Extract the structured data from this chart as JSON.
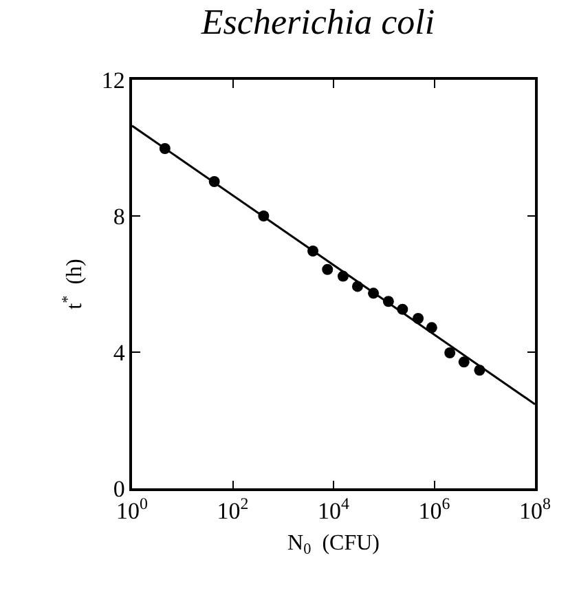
{
  "chart_data": {
    "type": "scatter",
    "title": "Escherichia coli",
    "xlabel": "N$_{0}$  (CFU)",
    "ylabel": "t$^{*}$  (h)",
    "log": "x",
    "xlim": [
      1,
      100000000
    ],
    "ylim": [
      0,
      12
    ],
    "xticks": [
      {
        "value": 1,
        "label": "10$^{0}$"
      },
      {
        "value": 100,
        "label": "10$^{2}$"
      },
      {
        "value": 10000,
        "label": "10$^{4}$"
      },
      {
        "value": 1000000,
        "label": "10$^{6}$"
      },
      {
        "value": 100000000,
        "label": "10$^{8}$"
      }
    ],
    "yticks": [
      0,
      4,
      8,
      12
    ],
    "series": [
      {
        "marker": "circle",
        "color": "#000000",
        "x": [
          4.5,
          43,
          410,
          3900,
          7600,
          15500,
          30000,
          62000,
          123000,
          234000,
          479000,
          891000,
          2040000,
          3890000,
          7940000
        ],
        "values": [
          9.98,
          9.01,
          8.0,
          6.97,
          6.43,
          6.23,
          5.93,
          5.73,
          5.49,
          5.26,
          4.99,
          4.72,
          3.98,
          3.71,
          3.47
        ]
      },
      {
        "type": "line",
        "marker": "none",
        "color": "#000000",
        "line_style": "solid",
        "x": [
          1,
          100000000
        ],
        "values": [
          10.65,
          2.47
        ]
      }
    ]
  }
}
